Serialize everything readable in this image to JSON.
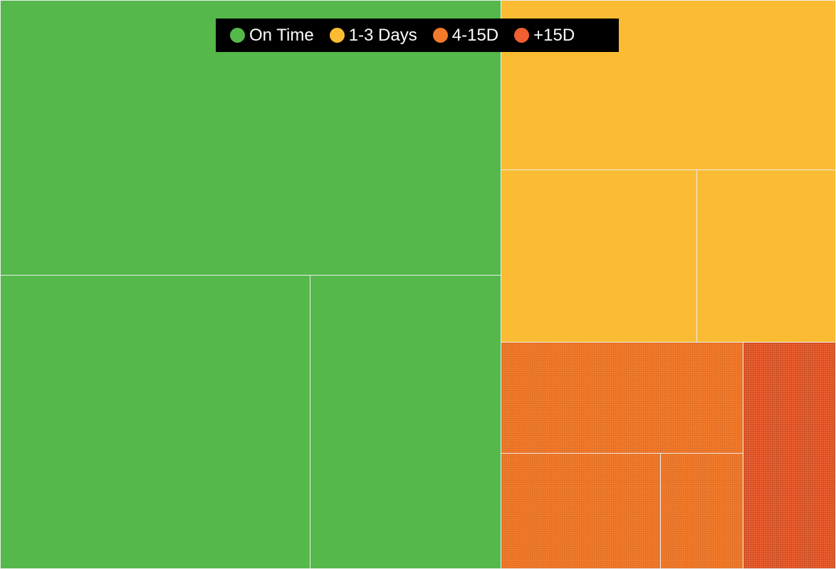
{
  "chart_data": {
    "type": "treemap",
    "title": "",
    "legend": {
      "placement": "top-center",
      "items": [
        {
          "label": "On Time",
          "color": "#55b84a"
        },
        {
          "label": "1-3 Days",
          "color": "#fbbc33"
        },
        {
          "label": "4-15D",
          "color": "#f37a2a"
        },
        {
          "label": "+15D",
          "color": "#ef5f2f"
        }
      ]
    },
    "groups": [
      {
        "name": "On Time",
        "color": "#55b84a",
        "values": [
          27.3,
          17.9,
          11.1
        ]
      },
      {
        "name": "1-3 Days",
        "color": "#fbbc33",
        "values": [
          7.9,
          5.5,
          4.0
        ]
      },
      {
        "name": "4-15D",
        "color": "#f37a2a",
        "values": [
          4.4,
          3.8,
          2.0
        ]
      },
      {
        "name": "+15D",
        "color": "#ef5f2f",
        "values": [
          2.9
        ]
      }
    ]
  }
}
